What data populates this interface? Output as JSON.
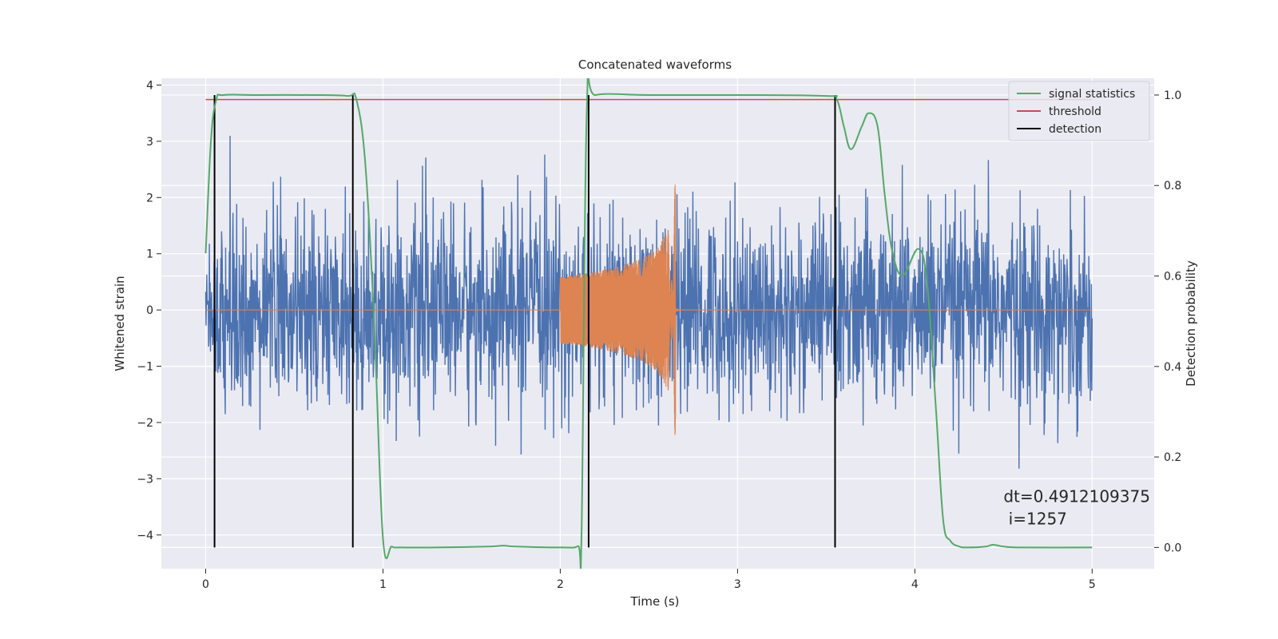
{
  "chart_data": {
    "type": "line",
    "title": "Concatenated waveforms",
    "xlabel": "Time (s)",
    "ylabel": "Whitened strain",
    "y2label": "Detection probability",
    "xlim": [
      -0.25,
      5.35
    ],
    "ylim": [
      -4.6,
      4.12
    ],
    "y2lim": [
      -0.047,
      1.037
    ],
    "xticks": [
      0,
      1,
      2,
      3,
      4,
      5
    ],
    "yticks": [
      -4,
      -3,
      -2,
      -1,
      0,
      1,
      2,
      3,
      4
    ],
    "y2ticks": [
      0.0,
      0.2,
      0.4,
      0.6,
      0.8,
      1.0
    ],
    "ytick_labels": [
      "−4",
      "−3",
      "−2",
      "−1",
      "0",
      "1",
      "2",
      "3",
      "4"
    ],
    "y2tick_labels": [
      "0.0",
      "0.2",
      "0.4",
      "0.6",
      "0.8",
      "1.0"
    ],
    "grid": true,
    "legend_position": "top-right",
    "legend": [
      "signal statistics",
      "threshold",
      "detection"
    ],
    "colors": {
      "strain": "#4c72b0",
      "injection": "#dd8452",
      "signal": "#55a868",
      "threshold": "#c44e52",
      "detection": "#000000",
      "background": "#eaeaf2",
      "grid": "#ffffff"
    },
    "series": [
      {
        "name": "strain",
        "axis": "left",
        "description": "noisy whitened strain on [0, 5] s with amplitude within about ±2.5"
      },
      {
        "name": "injection",
        "axis": "left",
        "x_range": [
          2.0,
          2.65
        ],
        "envelope": {
          "x": [
            2.0,
            2.15,
            2.3,
            2.45,
            2.55,
            2.62,
            2.65
          ],
          "amp": [
            0.6,
            0.65,
            0.75,
            0.9,
            1.1,
            1.5,
            2.3
          ]
        }
      },
      {
        "name": "signal statistics",
        "axis": "right",
        "x": [
          0.0,
          0.03,
          0.06,
          0.1,
          0.3,
          0.6,
          0.8,
          0.85,
          0.9,
          0.95,
          1.0,
          1.05,
          1.1,
          1.3,
          1.6,
          1.68,
          1.75,
          2.0,
          2.1,
          2.12,
          2.15,
          2.2,
          2.5,
          3.0,
          3.5,
          3.56,
          3.6,
          3.64,
          3.7,
          3.74,
          3.79,
          3.83,
          3.87,
          3.93,
          4.02,
          4.07,
          4.12,
          4.16,
          4.2,
          4.25,
          4.3,
          4.4,
          4.44,
          4.5,
          4.6,
          5.0
        ],
        "y": [
          0.65,
          0.9,
          0.99,
          1.0,
          1.0,
          1.0,
          0.998,
          0.99,
          0.85,
          0.5,
          0.02,
          0.002,
          0.0,
          0.0,
          0.002,
          0.004,
          0.002,
          0.0,
          0.003,
          0.03,
          0.97,
          1.0,
          1.0,
          1.0,
          0.998,
          0.99,
          0.93,
          0.88,
          0.93,
          0.96,
          0.93,
          0.78,
          0.66,
          0.6,
          0.66,
          0.58,
          0.3,
          0.06,
          0.015,
          0.002,
          0.0,
          0.002,
          0.006,
          0.002,
          0.0,
          0.0
        ]
      },
      {
        "name": "threshold",
        "axis": "right",
        "x": [
          0.0,
          5.0
        ],
        "y": [
          0.99,
          0.99
        ]
      },
      {
        "name": "detection",
        "axis": "right",
        "x": [
          0.05,
          0.83,
          2.16,
          3.55
        ],
        "y_range": [
          0.0,
          1.0
        ]
      }
    ],
    "annotation": {
      "text_lines": [
        "dt=0.4912109375",
        " i=1257"
      ],
      "x": 4.5,
      "y": 0.1
    }
  }
}
